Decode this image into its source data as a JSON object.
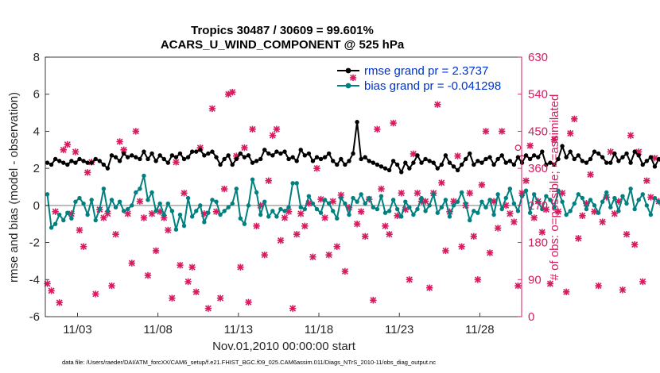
{
  "chart_data": {
    "type": "line",
    "title_line1": "Tropics 30487 / 30609 = 99.601%",
    "title_line2": "ACARS_U_WIND_COMPONENT @ 525 hPa",
    "xlabel": "Nov.01,2010 00:00:00 start",
    "ylabel_left": "rmse and bias (model - observation)",
    "ylabel_right": "# of obs: o=possible; ×=assimilated",
    "xlim": [
      1,
      30.6
    ],
    "ylim_left": [
      -6,
      8
    ],
    "ylim_right": [
      0,
      630
    ],
    "x_ticks": [
      3,
      8,
      13,
      18,
      23,
      28
    ],
    "x_tick_labels": [
      "11/03",
      "11/08",
      "11/13",
      "11/18",
      "11/23",
      "11/28"
    ],
    "y_ticks_left": [
      -6,
      -4,
      -2,
      0,
      2,
      4,
      6,
      8
    ],
    "y_ticks_right": [
      0,
      90,
      180,
      270,
      360,
      450,
      540,
      630
    ],
    "colors": {
      "rmse": "#000000",
      "bias": "#008080",
      "obs": "#d81b60",
      "right_axis": "#d81b60",
      "legend_text": "#0033cc",
      "zero_line": "#a6a6a6"
    },
    "series": [
      {
        "name": "rmse grand pr = 2.3737",
        "axis": "left",
        "x_start": 1.125,
        "x_step": 0.25,
        "values": [
          2.3,
          2.2,
          2.5,
          2.4,
          2.3,
          2.2,
          2.4,
          2.3,
          2.5,
          2.4,
          2.3,
          2.3,
          2.5,
          2.4,
          2.2,
          2.0,
          2.7,
          2.6,
          2.4,
          2.8,
          2.6,
          2.7,
          2.6,
          2.5,
          2.9,
          2.5,
          2.8,
          2.4,
          2.7,
          2.5,
          2.3,
          2.7,
          2.6,
          2.8,
          2.5,
          2.6,
          2.9,
          2.9,
          3.0,
          2.7,
          2.8,
          2.9,
          2.6,
          2.2,
          2.5,
          2.7,
          2.2,
          2.5,
          2.8,
          2.6,
          2.7,
          2.3,
          2.4,
          2.5,
          3.0,
          2.8,
          2.7,
          2.9,
          2.8,
          2.9,
          2.5,
          2.6,
          2.4,
          3.0,
          2.7,
          2.8,
          2.4,
          2.6,
          2.5,
          2.6,
          2.8,
          2.4,
          2.2,
          2.5,
          2.2,
          2.4,
          2.8,
          4.5,
          2.5,
          2.6,
          2.4,
          2.3,
          2.2,
          2.1,
          2.0,
          1.9,
          2.4,
          2.2,
          1.8,
          2.3,
          2.0,
          2.3,
          2.7,
          2.3,
          2.5,
          2.4,
          2.3,
          2.0,
          2.2,
          2.7,
          2.3,
          2.1,
          1.9,
          2.2,
          2.5,
          2.8,
          2.2,
          2.4,
          2.3,
          2.5,
          2.6,
          2.2,
          2.5,
          2.7,
          2.3,
          2.4,
          2.2,
          2.6,
          2.3,
          2.7,
          2.5,
          2.7,
          2.6,
          2.9,
          2.2,
          2.3,
          2.2,
          2.5,
          3.2,
          2.6,
          2.9,
          2.5,
          2.7,
          2.4,
          2.3,
          2.5,
          2.9,
          2.8,
          2.6,
          2.3,
          2.3,
          2.8,
          2.4,
          2.6,
          2.8,
          2.3,
          2.9,
          2.7,
          2.2,
          2.4,
          2.6,
          2.1,
          2.5,
          2.2,
          2.3,
          2.6,
          2.4,
          2.3,
          2.0,
          1.9,
          2.4,
          2.2,
          2.0,
          2.3,
          2.1,
          2.3,
          2.2,
          2.4,
          2.1,
          2.3,
          2.5,
          2.3,
          2.0,
          2.2,
          2.4,
          2.8,
          2.5,
          2.3,
          2.6,
          2.4,
          2.2,
          2.0,
          2.5,
          2.1,
          2.6,
          2.5,
          2.6,
          2.3,
          2.4,
          2.4,
          2.6,
          2.7,
          2.4,
          2.6,
          2.9,
          2.3,
          2.2,
          2.6,
          2.4,
          2.1,
          1.9,
          2.5,
          2.3,
          2.7,
          2.4,
          2.2,
          2.5,
          2.1,
          2.4,
          2.8,
          2.3,
          2.5,
          2.3,
          2.3,
          2.1,
          2.4,
          2.0,
          2.7,
          2.3,
          3.5,
          2.4,
          2.2,
          2.6,
          2.4,
          2.7,
          2.5,
          2.2,
          2.0,
          2.3,
          2.1,
          2.3,
          2.0,
          2.4,
          2.2,
          2.3,
          1.9,
          2.7,
          2.5,
          2.6,
          2.3,
          2.4,
          2.1,
          2.2,
          2.5,
          2.8,
          2.2,
          2.7,
          2.4,
          2.2,
          2.1,
          2.0,
          2.3,
          2.7,
          2.9,
          2.8,
          3.0,
          3.1,
          2.9,
          3.3,
          2.9,
          2.8
        ]
      },
      {
        "name": "bias grand pr = -0.041298",
        "axis": "left",
        "x_start": 1.125,
        "x_step": 0.25,
        "values": [
          0.6,
          -1.2,
          -1.0,
          -0.5,
          -0.8,
          -0.4,
          -0.7,
          0.2,
          0.4,
          0.1,
          -0.5,
          0.3,
          -0.8,
          -0.2,
          0.9,
          -0.3,
          0.3,
          -0.1,
          0.2,
          -0.3,
          -0.2,
          0.0,
          0.7,
          0.9,
          1.6,
          0.3,
          0.7,
          -0.3,
          0.1,
          -0.5,
          0.1,
          -0.3,
          -1.3,
          -0.5,
          -1.1,
          0.4,
          -0.6,
          -0.3,
          0.0,
          -0.9,
          -0.4,
          0.3,
          0.2,
          -0.5,
          -0.3,
          -0.1,
          0.1,
          0.9,
          -0.7,
          -1.0,
          0.0,
          1.4,
          0.7,
          -0.5,
          0.2,
          -0.6,
          -0.3,
          -0.6,
          -0.2,
          -0.3,
          -0.1,
          1.2,
          1.2,
          -0.1,
          -0.2,
          0.5,
          0.1,
          -0.2,
          -0.4,
          0.3,
          0.1,
          -0.3,
          -0.7,
          0.4,
          0.1,
          -0.5,
          0.4,
          0.2,
          0.6,
          0.1,
          0.4,
          -0.1,
          -0.2,
          0.5,
          -0.4,
          -0.3,
          0.3,
          -0.2,
          -0.6,
          0.2,
          -0.1,
          -0.5,
          -0.2,
          0.4,
          -0.3,
          0.0,
          0.6,
          -0.4,
          -0.1,
          0.3,
          -0.6,
          0.0,
          0.2,
          0.7,
          0.1,
          -0.8,
          -0.3,
          -0.4,
          0.2,
          -0.1,
          0.3,
          -0.5,
          0.6,
          -0.2,
          0.4,
          0.9,
          0.1,
          -0.3,
          0.5,
          0.8,
          -0.4,
          0.6,
          0.2,
          -0.2,
          0.5,
          0.3,
          -0.1,
          0.8,
          0.2,
          -0.5,
          -0.3,
          0.1,
          0.6,
          0.4,
          -0.2,
          0.3,
          0.0,
          -0.4,
          0.2,
          0.7,
          -0.1,
          0.4,
          -0.3,
          0.5,
          0.1,
          0.9,
          -0.2,
          0.3,
          0.6,
          0.0,
          -0.5,
          0.4,
          0.2,
          -0.1,
          0.3,
          -0.4,
          0.5,
          0.1,
          -0.2,
          0.6,
          0.8,
          0.0,
          -0.3,
          0.4,
          0.1,
          -0.6,
          0.3,
          0.5,
          -0.2,
          0.2,
          -0.1,
          -0.4,
          0.4,
          0.6,
          -0.3,
          0.1,
          0.5,
          -0.2,
          0.3,
          0.8,
          0.0,
          -0.5,
          0.2,
          0.4,
          -0.1,
          0.6,
          -0.8,
          -0.3,
          0.1,
          -1.3,
          0.3,
          -0.6,
          0.2,
          -0.2,
          0.4,
          0.1,
          -0.4,
          0.5,
          0.3,
          -0.5,
          -0.3,
          0.2,
          -0.1,
          0.3,
          -0.3,
          -0.4,
          0.4,
          0.2,
          -0.2,
          0.5,
          0.1,
          1.0,
          0.7,
          0.3,
          1.2,
          0.9,
          -0.3,
          0.5,
          0.8,
          -0.2,
          0.4,
          0.1,
          -0.6,
          0.3,
          0.0,
          -0.3,
          0.6,
          0.4,
          0.9,
          0.5,
          0.8,
          0.2,
          0.6,
          -0.4,
          0.3,
          0.1,
          0.0,
          -0.5,
          -0.2,
          0.4,
          0.7,
          0.9,
          0.6,
          0.1,
          -0.8,
          -0.6,
          0.4,
          0.7,
          0.3,
          -1.3,
          0.2,
          0.5,
          -0.2,
          1.2,
          0.6,
          0.9,
          0.8,
          0.5,
          0.8,
          0.9,
          0.8
        ]
      },
      {
        "name": "obs assimilated",
        "axis": "right",
        "x_start": 1.125,
        "x_step": 0.25,
        "values": [
          80,
          63,
          255,
          34,
          405,
          418,
          250,
          400,
          210,
          170,
          350,
          375,
          55,
          260,
          240,
          250,
          75,
          200,
          425,
          405,
          250,
          130,
          450,
          280,
          240,
          100,
          250,
          160,
          255,
          240,
          210,
          45,
          375,
          125,
          300,
          85,
          120,
          60,
          410,
          250,
          20,
          505,
          255,
          45,
          310,
          540,
          545,
          390,
          120,
          410,
          35,
          455,
          220,
          270,
          150,
          330,
          440,
          455,
          185,
          240,
          255,
          20,
          200,
          250,
          220,
          275,
          145,
          360,
          285,
          240,
          150,
          280,
          170,
          295,
          110,
          265,
          580,
          225,
          255,
          195,
          285,
          40,
          455,
          310,
          220,
          200,
          470,
          245,
          300,
          260,
          90,
          395,
          300,
          280,
          280,
          70,
          300,
          515,
          325,
          160,
          255,
          280,
          390,
          170,
          270,
          300,
          195,
          90,
          320,
          450,
          155,
          280,
          215,
          450,
          270,
          250,
          230,
          75,
          300,
          330,
          415,
          240,
          280,
          205,
          260,
          80,
          430,
          255,
          300,
          60,
          445,
          480,
          190,
          245,
          275,
          345,
          255,
          75,
          230,
          290,
          400,
          250,
          280,
          65,
          200,
          440,
          175,
          400,
          85,
          330,
          290,
          385,
          280,
          270,
          220,
          230,
          90,
          205,
          280,
          265,
          300,
          80,
          320,
          480,
          255,
          300,
          90,
          390,
          275,
          260,
          200,
          220,
          60,
          300,
          240,
          330,
          420,
          290,
          280,
          80,
          220,
          310,
          460,
          240,
          90,
          320,
          280,
          260,
          200,
          300,
          90,
          375,
          255,
          280,
          70,
          290,
          400,
          240,
          215,
          300,
          95,
          310,
          365,
          250,
          280,
          280,
          240,
          95,
          300,
          330,
          250,
          300,
          60,
          280,
          260,
          395,
          245,
          300,
          220,
          80,
          320,
          385,
          300,
          260,
          300,
          305,
          240,
          285,
          65,
          410,
          290,
          295,
          255,
          270,
          80,
          415,
          310,
          290,
          300,
          260,
          95,
          300,
          420,
          280,
          305,
          60,
          280,
          385,
          300,
          260,
          400,
          290,
          230,
          75,
          300,
          300,
          60,
          290,
          300,
          410,
          420,
          0
        ]
      },
      {
        "name": "obs possible",
        "axis": "right",
        "x_start": 30.375,
        "x_step": 0.25,
        "values": [
          410,
          385
        ]
      }
    ],
    "legend": [
      "rmse grand pr = 2.3737",
      "bias grand pr = -0.041298"
    ],
    "legend_position": "top-right"
  },
  "footer": "data file: /Users/raeder/DAI/ATM_forcXX/CAM6_setup/f.e21.FHIST_BGC.f09_025.CAM6assim.011/Diags_NTrS_2010-11/obs_diag_output.nc"
}
